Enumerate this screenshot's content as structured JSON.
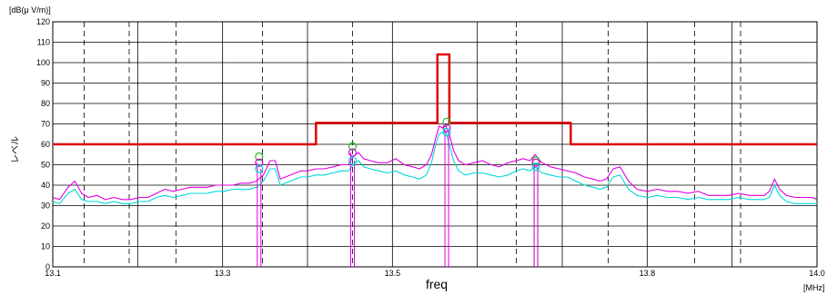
{
  "chart_data": {
    "type": "line",
    "y_unit_label": "[dB(μ V/m)]",
    "x_unit_label": "[MHz]",
    "xlabel": "freq",
    "ylabel": "レベル",
    "xlim": [
      13.1,
      14.0
    ],
    "ylim": [
      0,
      120
    ],
    "y_ticks": [
      0,
      10,
      20,
      30,
      40,
      50,
      60,
      70,
      80,
      90,
      100,
      110,
      120
    ],
    "x_tick_labels": [
      {
        "value": 13.1,
        "label": "13.1"
      },
      {
        "value": 13.3,
        "label": "13.3"
      },
      {
        "value": 13.5,
        "label": "13.5"
      },
      {
        "value": 13.8,
        "label": "13.8"
      },
      {
        "value": 14.0,
        "label": "14.0"
      }
    ],
    "x_solid_grid": [
      13.1,
      13.2,
      13.3,
      13.4,
      13.5,
      13.6,
      13.7,
      13.8,
      13.9,
      14.0
    ],
    "x_dashed_grid": [
      13.137,
      13.19,
      13.245,
      13.347,
      13.453,
      13.646,
      13.754,
      13.856,
      13.91
    ],
    "grid": true,
    "colors": {
      "limit": "#e00000",
      "series_magenta": "#e000e0",
      "series_cyan": "#00d8d8",
      "peak_markers": "#20c020",
      "grid": "#000000"
    },
    "series": [
      {
        "role": "limit",
        "color": "#e00000",
        "x": [
          13.1,
          13.41,
          13.41,
          13.553,
          13.553,
          13.567,
          13.567,
          13.71,
          13.71,
          14.0
        ],
        "y": [
          60,
          60,
          70.5,
          70.5,
          104,
          104,
          70.5,
          70.5,
          60,
          60
        ]
      },
      {
        "role": "measured",
        "color": "#e000e0",
        "x": [
          13.1,
          13.108,
          13.118,
          13.126,
          13.134,
          13.142,
          13.152,
          13.162,
          13.172,
          13.182,
          13.192,
          13.202,
          13.212,
          13.222,
          13.232,
          13.242,
          13.252,
          13.262,
          13.272,
          13.282,
          13.292,
          13.302,
          13.312,
          13.322,
          13.332,
          13.34,
          13.348,
          13.356,
          13.362,
          13.368,
          13.374,
          13.38,
          13.386,
          13.392,
          13.4,
          13.41,
          13.42,
          13.43,
          13.44,
          13.448,
          13.454,
          13.46,
          13.466,
          13.474,
          13.484,
          13.494,
          13.504,
          13.514,
          13.524,
          13.532,
          13.54,
          13.546,
          13.551,
          13.555,
          13.559,
          13.563,
          13.567,
          13.572,
          13.578,
          13.586,
          13.596,
          13.606,
          13.616,
          13.626,
          13.636,
          13.646,
          13.654,
          13.662,
          13.668,
          13.676,
          13.686,
          13.696,
          13.706,
          13.716,
          13.726,
          13.736,
          13.744,
          13.752,
          13.76,
          13.768,
          13.778,
          13.788,
          13.8,
          13.812,
          13.824,
          13.836,
          13.848,
          13.86,
          13.872,
          13.884,
          13.896,
          13.908,
          13.92,
          13.93,
          13.938,
          13.944,
          13.95,
          13.956,
          13.964,
          13.974,
          13.984,
          13.994,
          14.0
        ],
        "y": [
          34,
          33,
          39,
          42,
          36,
          34,
          35,
          33,
          34,
          33,
          33,
          34,
          34,
          36,
          38,
          37,
          38,
          39,
          39,
          39,
          40,
          40,
          40,
          41,
          41,
          42,
          45,
          52,
          52,
          43,
          44,
          45,
          46,
          47,
          47,
          48,
          48,
          49,
          50,
          50,
          54,
          56,
          53,
          52,
          51,
          51,
          53,
          50,
          49,
          48,
          50,
          55,
          63,
          69,
          68,
          69,
          65,
          57,
          52,
          50,
          51,
          52,
          50,
          49,
          51,
          52,
          53,
          52,
          55,
          51,
          49,
          48,
          47,
          46,
          44,
          43,
          42,
          43,
          48,
          49,
          42,
          38,
          37,
          38,
          37,
          37,
          36,
          37,
          35,
          35,
          35,
          36,
          35,
          35,
          35,
          37,
          43,
          38,
          35,
          34,
          34,
          34,
          33
        ]
      },
      {
        "role": "measured",
        "color": "#00d8d8",
        "x": [
          13.1,
          13.108,
          13.118,
          13.126,
          13.134,
          13.142,
          13.152,
          13.162,
          13.172,
          13.182,
          13.192,
          13.202,
          13.212,
          13.222,
          13.232,
          13.242,
          13.252,
          13.262,
          13.272,
          13.282,
          13.292,
          13.302,
          13.312,
          13.322,
          13.332,
          13.34,
          13.348,
          13.356,
          13.362,
          13.368,
          13.374,
          13.38,
          13.386,
          13.392,
          13.4,
          13.41,
          13.42,
          13.43,
          13.44,
          13.448,
          13.454,
          13.46,
          13.466,
          13.474,
          13.484,
          13.494,
          13.504,
          13.514,
          13.524,
          13.532,
          13.54,
          13.546,
          13.551,
          13.555,
          13.559,
          13.563,
          13.567,
          13.572,
          13.578,
          13.586,
          13.596,
          13.606,
          13.616,
          13.626,
          13.636,
          13.646,
          13.654,
          13.662,
          13.668,
          13.676,
          13.686,
          13.696,
          13.706,
          13.716,
          13.726,
          13.736,
          13.744,
          13.752,
          13.76,
          13.768,
          13.778,
          13.788,
          13.8,
          13.812,
          13.824,
          13.836,
          13.848,
          13.86,
          13.872,
          13.884,
          13.896,
          13.908,
          13.92,
          13.93,
          13.938,
          13.944,
          13.95,
          13.956,
          13.964,
          13.974,
          13.984,
          13.994,
          14.0
        ],
        "y": [
          32,
          31,
          36,
          38,
          33,
          32,
          32,
          31,
          32,
          31,
          31,
          32,
          32,
          34,
          35,
          34,
          35,
          36,
          36,
          36,
          37,
          37,
          38,
          38,
          38,
          39,
          42,
          48,
          48,
          40,
          41,
          42,
          43,
          44,
          44,
          45,
          45,
          46,
          47,
          47,
          50,
          52,
          49,
          48,
          47,
          46,
          47,
          45,
          44,
          43,
          45,
          51,
          60,
          65,
          66,
          66,
          60,
          52,
          47,
          45,
          46,
          46,
          45,
          44,
          45,
          47,
          48,
          47,
          49,
          46,
          45,
          44,
          44,
          42,
          40,
          39,
          38,
          39,
          44,
          45,
          38,
          35,
          34,
          35,
          34,
          34,
          33,
          34,
          33,
          33,
          33,
          34,
          33,
          33,
          33,
          34,
          40,
          35,
          32,
          31,
          31,
          31,
          31
        ]
      }
    ],
    "peaks": [
      {
        "x": 13.343,
        "green": 54,
        "magenta": 51,
        "cyan": 48,
        "line_color": "#e000e0"
      },
      {
        "x": 13.453,
        "green": 59,
        "magenta": 56,
        "cyan": 52,
        "line_color": "#e000e0"
      },
      {
        "x": 13.564,
        "green": 71,
        "magenta": 68,
        "cyan": 66,
        "line_color": "#e000e0"
      },
      {
        "x": 13.669,
        "green": 52,
        "magenta": 51,
        "cyan": 49,
        "line_color": "#c000c0"
      }
    ]
  }
}
